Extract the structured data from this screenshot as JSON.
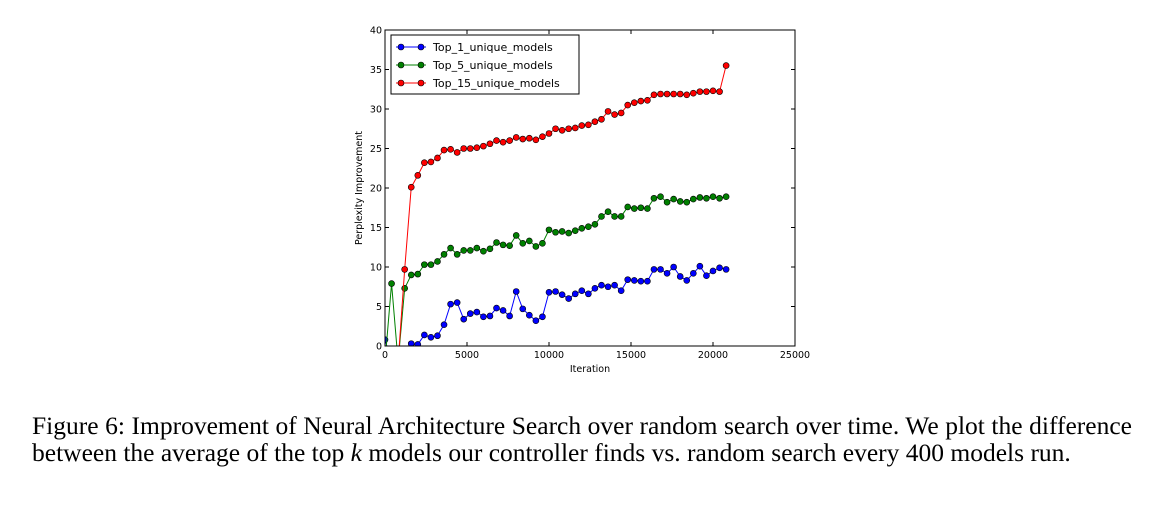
{
  "caption": {
    "figure_label": "Figure 6:",
    "part1": "Improvement of Neural Architecture Search over random search over time. We plot the difference between the average of the top ",
    "k": "k",
    "part2": " models our controller finds vs. random search every 400 models run."
  },
  "colors": {
    "top1": "#0000ff",
    "top1_marker": "#0000cc",
    "top5": "#008000",
    "top5_marker": "#006400",
    "top15": "#ff0000",
    "top15_marker": "#cc0000"
  },
  "chart_data": {
    "type": "line",
    "title": "",
    "xlabel": "Iteration",
    "ylabel": "Perplexity Improvement",
    "xlim": [
      0,
      25000
    ],
    "ylim": [
      0,
      40
    ],
    "xticks": [
      0,
      5000,
      10000,
      15000,
      20000,
      25000
    ],
    "yticks": [
      0,
      5,
      10,
      15,
      20,
      25,
      30,
      35,
      40
    ],
    "grid": false,
    "legend_position": "top-left",
    "x": [
      0,
      400,
      800,
      1200,
      1600,
      2000,
      2400,
      2800,
      3200,
      3600,
      4000,
      4400,
      4800,
      5200,
      5600,
      6000,
      6400,
      6800,
      7200,
      7600,
      8000,
      8400,
      8800,
      9200,
      9600,
      10000,
      10400,
      10800,
      11200,
      11600,
      12000,
      12400,
      12800,
      13200,
      13600,
      14000,
      14400,
      14800,
      15200,
      15600,
      16000,
      16400,
      16800,
      17200,
      17600,
      18000,
      18400,
      18800,
      19200,
      19600,
      20000,
      20400,
      20800
    ],
    "series": [
      {
        "name": "Top_1_unique_models",
        "color": "#0000ff",
        "values": [
          0.8,
          -2,
          -2,
          -2,
          0.3,
          0.2,
          1.4,
          1.1,
          1.3,
          2.7,
          5.3,
          5.5,
          3.4,
          4.1,
          4.3,
          3.7,
          3.8,
          4.8,
          4.5,
          3.8,
          6.9,
          4.7,
          3.9,
          3.2,
          3.7,
          6.8,
          6.9,
          6.5,
          6.0,
          6.6,
          7.0,
          6.6,
          7.3,
          7.7,
          7.5,
          7.7,
          7.0,
          8.4,
          8.3,
          8.2,
          8.2,
          9.7,
          9.7,
          9.2,
          10.0,
          8.8,
          8.3,
          9.2,
          10.1,
          8.9,
          9.5,
          9.9,
          9.7
        ]
      },
      {
        "name": "Top_5_unique_models",
        "color": "#008000",
        "values": [
          -2,
          7.9,
          -2,
          7.3,
          9.0,
          9.1,
          10.3,
          10.3,
          10.7,
          11.6,
          12.4,
          11.6,
          12.1,
          12.1,
          12.4,
          12.0,
          12.3,
          13.1,
          12.8,
          12.7,
          14.0,
          13.0,
          13.3,
          12.6,
          13.0,
          14.7,
          14.4,
          14.5,
          14.3,
          14.6,
          14.9,
          15.1,
          15.4,
          16.4,
          17.0,
          16.4,
          16.4,
          17.6,
          17.4,
          17.5,
          17.4,
          18.7,
          18.9,
          18.2,
          18.6,
          18.3,
          18.2,
          18.6,
          18.8,
          18.7,
          18.9,
          18.7,
          18.9
        ]
      },
      {
        "name": "Top_15_unique_models",
        "color": "#ff0000",
        "values": [
          -2,
          -2,
          -2,
          9.7,
          20.1,
          21.6,
          23.2,
          23.3,
          23.8,
          24.8,
          24.9,
          24.5,
          25.0,
          25.0,
          25.1,
          25.3,
          25.6,
          26.0,
          25.8,
          26.0,
          26.4,
          26.2,
          26.3,
          26.1,
          26.5,
          26.9,
          27.5,
          27.3,
          27.5,
          27.6,
          27.9,
          28.0,
          28.4,
          28.7,
          29.7,
          29.3,
          29.5,
          30.5,
          30.8,
          31.0,
          31.1,
          31.8,
          31.9,
          31.9,
          31.9,
          31.9,
          31.8,
          32.0,
          32.2,
          32.2,
          32.3,
          32.2,
          35.5
        ]
      }
    ]
  }
}
